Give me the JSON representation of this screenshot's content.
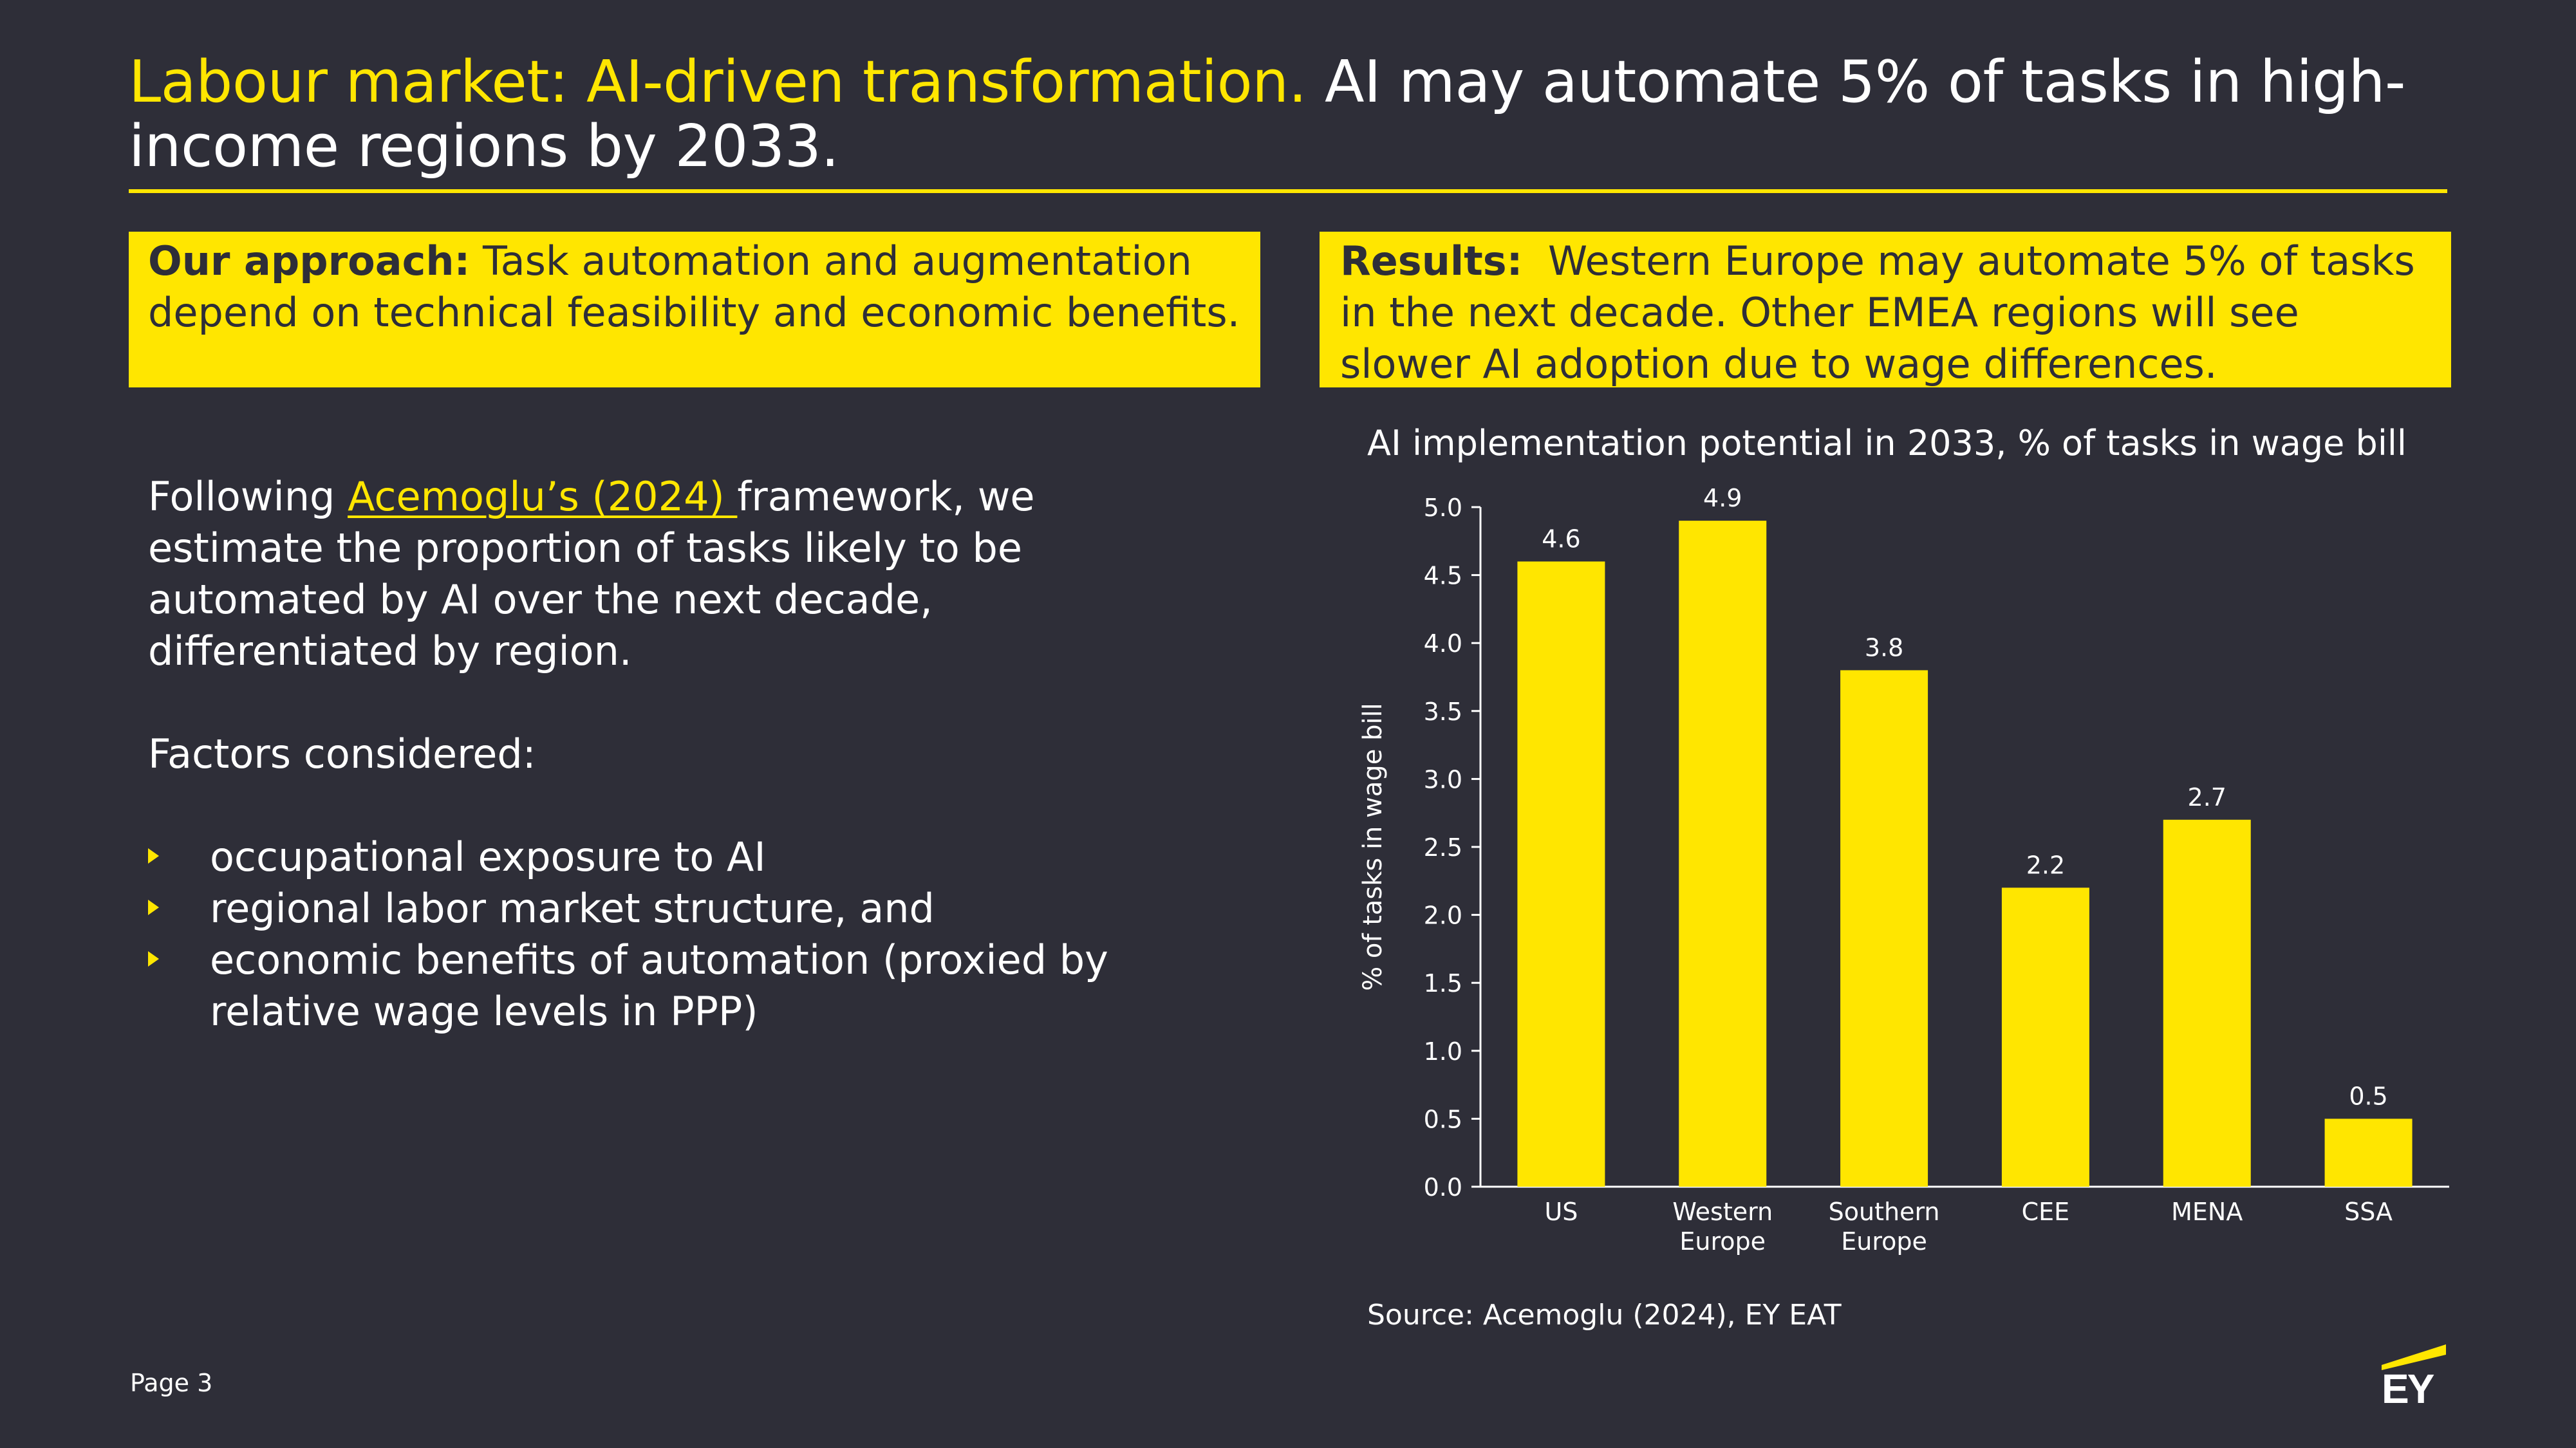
{
  "header": {
    "title_highlight": "Labour market: AI-driven transformation.",
    "title_rest": " AI may automate 5% of tasks in high-income regions by 2033."
  },
  "approach": {
    "lead": "Our approach:",
    "text": " Task automation and augmentation depend on technical feasibility and economic benefits."
  },
  "results": {
    "lead": "Results:",
    "text": "  Western Europe may automate 5% of tasks in the next decade. Other EMEA regions will see slower AI adoption due to wage differences."
  },
  "body": {
    "intro_before": "Following ",
    "intro_link": "Acemoglu’s (2024) ",
    "intro_after": "framework, we estimate the proportion of tasks likely to be automated by AI over the next decade, differentiated by region.",
    "factors_heading": "Factors considered:",
    "bullets": [
      "occupational exposure to AI",
      "regional labor market structure, and",
      "economic benefits of automation (proxied by relative wage levels in PPP)"
    ]
  },
  "chart_data": {
    "type": "bar",
    "title": "AI implementation potential in 2033, % of tasks in wage bill",
    "xlabel": "",
    "ylabel": "% of tasks in wage bill",
    "categories": [
      [
        "US"
      ],
      [
        "Western",
        "Europe"
      ],
      [
        "Southern",
        "Europe"
      ],
      [
        "CEE"
      ],
      [
        "MENA"
      ],
      [
        "SSA"
      ]
    ],
    "values": [
      4.6,
      4.9,
      3.8,
      2.2,
      2.7,
      0.5
    ],
    "value_labels": [
      "4.6",
      "4.9",
      "3.8",
      "2.2",
      "2.7",
      "0.5"
    ],
    "ylim": [
      0,
      5
    ],
    "yticks": [
      "0.0",
      "0.5",
      "1.0",
      "1.5",
      "2.0",
      "2.5",
      "3.0",
      "3.5",
      "4.0",
      "4.5",
      "5.0"
    ],
    "bar_color": "#ffe600",
    "grid": false
  },
  "source": "Source: Acemoglu (2024), EY EAT",
  "footer": {
    "page": "Page 3",
    "logo_text": "EY"
  },
  "colors": {
    "background": "#2e2e38",
    "accent": "#ffe600",
    "text": "#ffffff"
  }
}
